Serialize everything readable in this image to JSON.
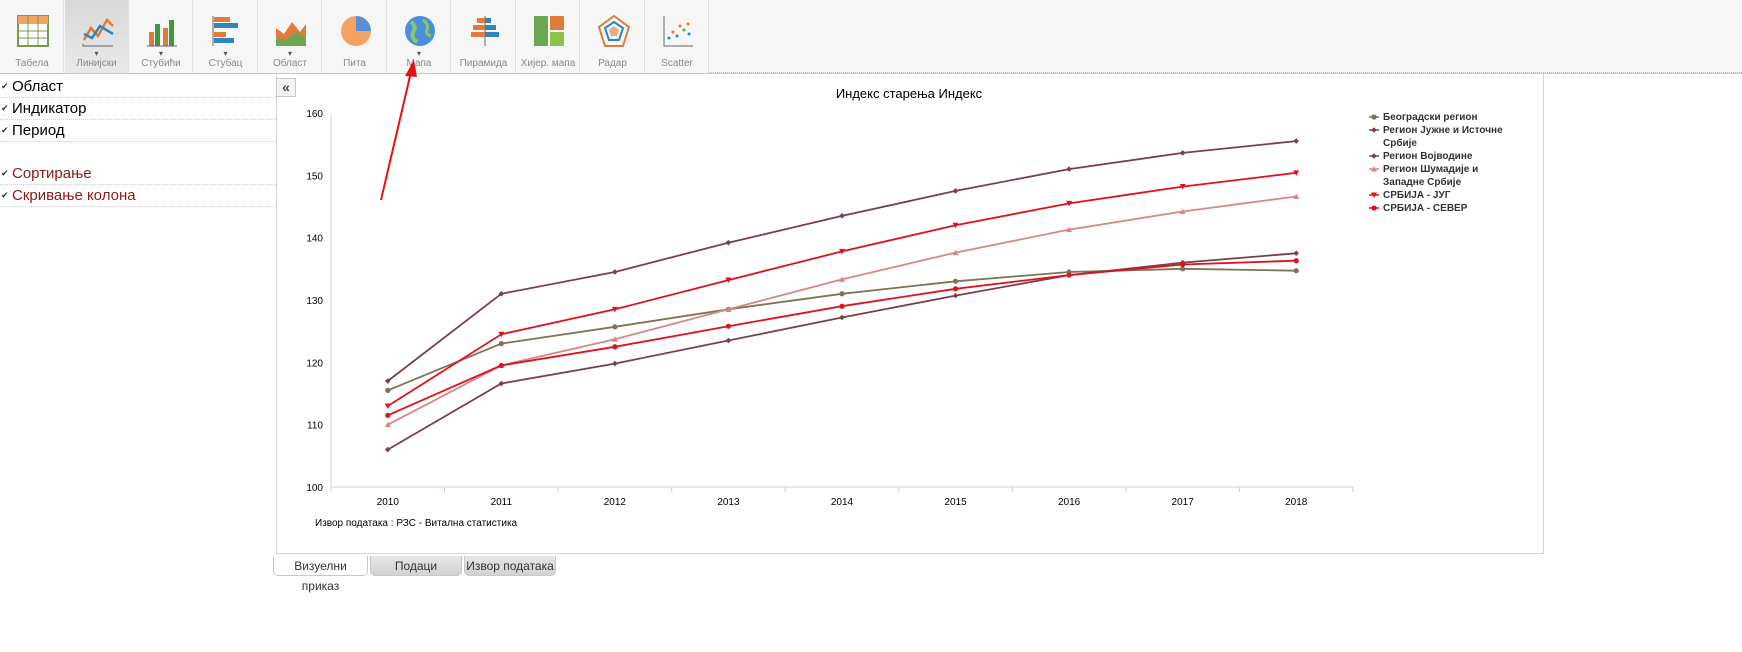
{
  "toolbar": {
    "buttons": [
      {
        "label": "Табела",
        "icon": "table-icon",
        "active": false,
        "caret": false
      },
      {
        "label": "Линијски",
        "icon": "line-chart-icon",
        "active": true,
        "caret": true
      },
      {
        "label": "Стубићи",
        "icon": "column-chart-icon",
        "active": false,
        "caret": true
      },
      {
        "label": "Стубац",
        "icon": "bar-chart-icon",
        "active": false,
        "caret": true
      },
      {
        "label": "Област",
        "icon": "area-chart-icon",
        "active": false,
        "caret": true
      },
      {
        "label": "Пита",
        "icon": "pie-chart-icon",
        "active": false,
        "caret": false
      },
      {
        "label": "Мапа",
        "icon": "globe-icon",
        "active": false,
        "caret": true
      },
      {
        "label": "Пирамида",
        "icon": "pyramid-chart-icon",
        "active": false,
        "caret": false
      },
      {
        "label": "Хијер. мапа",
        "icon": "treemap-icon",
        "active": false,
        "caret": false
      },
      {
        "label": "Радар",
        "icon": "radar-chart-icon",
        "active": false,
        "caret": false
      },
      {
        "label": "Scatter",
        "icon": "scatter-chart-icon",
        "active": false,
        "caret": false
      }
    ],
    "caret_glyph": "▾"
  },
  "left_panel": {
    "items": [
      {
        "label": "Област",
        "color": "normal"
      },
      {
        "label": "Индикатор",
        "color": "normal"
      },
      {
        "label": "Период",
        "color": "normal"
      }
    ],
    "items2": [
      {
        "label": "Сортирање",
        "color": "red"
      },
      {
        "label": "Скривање колона",
        "color": "red"
      }
    ],
    "check_glyph": "✔",
    "collapse_label": "«"
  },
  "source_text": "Извор података : РЗС - Витална статистика",
  "tabs": [
    {
      "label": "Визуелни приказ",
      "active": true
    },
    {
      "label": "Подаци",
      "active": false
    },
    {
      "label": "Извор података",
      "active": false
    }
  ],
  "chart_data": {
    "type": "line",
    "title": "Индекс старења Индекс",
    "categories": [
      "2010",
      "2011",
      "2012",
      "2013",
      "2014",
      "2015",
      "2016",
      "2017",
      "2018"
    ],
    "ylim": [
      100,
      160
    ],
    "yticks": [
      100,
      110,
      120,
      130,
      140,
      150,
      160
    ],
    "grid": false,
    "legend_position": "right",
    "series": [
      {
        "name": "Београдски регион",
        "color": "#7f7256",
        "marker": "circle",
        "values": [
          115.5,
          123,
          125.7,
          128.5,
          131,
          133,
          134.5,
          135,
          134.7
        ]
      },
      {
        "name": "Регион Јужне и Источне Србије",
        "color": "#7a4048",
        "marker": "diamond",
        "values": [
          117,
          131,
          134.5,
          139.2,
          143.5,
          147.5,
          151,
          153.6,
          155.5
        ]
      },
      {
        "name": "Регион Војводине",
        "color": "#7a4048",
        "marker": "diamond",
        "values": [
          106,
          116.6,
          119.8,
          123.5,
          127.2,
          130.7,
          134,
          136,
          137.5
        ]
      },
      {
        "name": "Регион Шумадије и Западне Србије",
        "color": "#d88787",
        "marker": "triangle",
        "values": [
          110,
          119.5,
          123.7,
          128.5,
          133.3,
          137.6,
          141.3,
          144.2,
          146.6
        ]
      },
      {
        "name": "СРБИЈА - ЈУГ",
        "color": "#e0101e",
        "marker": "triangle-down",
        "values": [
          113,
          124.5,
          128.5,
          133.2,
          137.8,
          142,
          145.5,
          148.2,
          150.4
        ]
      },
      {
        "name": "СРБИЈА - СЕВЕР",
        "color": "#e0101e",
        "marker": "circle",
        "values": [
          111.5,
          119.5,
          122.5,
          125.8,
          129,
          131.8,
          134,
          135.7,
          136.3
        ]
      }
    ]
  }
}
